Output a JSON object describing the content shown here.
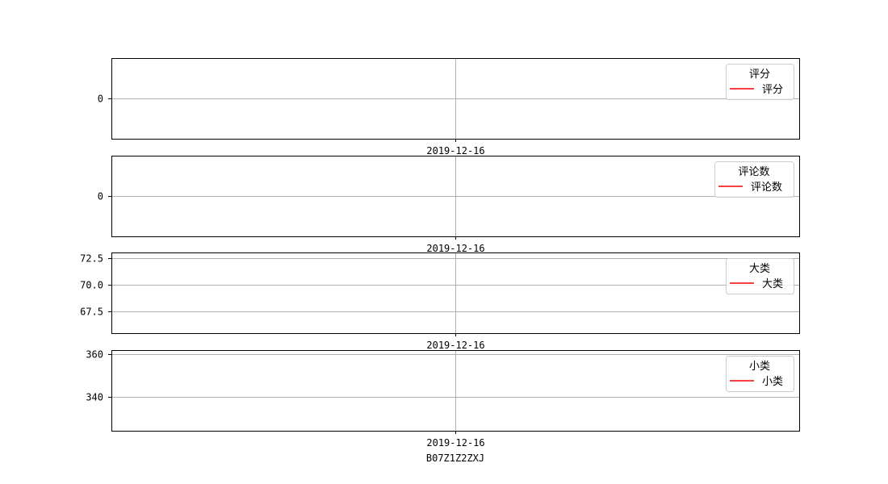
{
  "chart_data": [
    {
      "type": "line",
      "legend_title": "评分",
      "legend_position": "upper right",
      "x_ticks": [
        "2019-12-16"
      ],
      "xlabel": "",
      "y_ticks": [
        0
      ],
      "y_tick_labels": [
        "0"
      ],
      "ylim": [
        -0.055,
        0.055
      ],
      "grid": true,
      "series": [
        {
          "name": "评分",
          "color": "#ff0000",
          "x": [
            "2019-12-16"
          ],
          "y": [
            0
          ]
        }
      ]
    },
    {
      "type": "line",
      "legend_title": "评论数",
      "legend_position": "upper right",
      "x_ticks": [
        "2019-12-16"
      ],
      "xlabel": "",
      "y_ticks": [
        0
      ],
      "y_tick_labels": [
        "0"
      ],
      "ylim": [
        -0.055,
        0.055
      ],
      "grid": true,
      "series": [
        {
          "name": "评论数",
          "color": "#ff0000",
          "x": [
            "2019-12-16"
          ],
          "y": [
            0
          ]
        }
      ]
    },
    {
      "type": "line",
      "legend_title": "大类",
      "legend_position": "upper right",
      "x_ticks": [
        "2019-12-16"
      ],
      "xlabel": "",
      "y_ticks": [
        67.5,
        70.0,
        72.5
      ],
      "y_tick_labels": [
        "67.5",
        "70.0",
        "72.5"
      ],
      "ylim": [
        65.5,
        73.0
      ],
      "grid": true,
      "series": [
        {
          "name": "大类",
          "color": "#ff0000",
          "x": [
            "2019-12-16"
          ],
          "y": [
            70
          ]
        }
      ]
    },
    {
      "type": "line",
      "legend_title": "小类",
      "legend_position": "upper right",
      "x_ticks": [
        "2019-12-16"
      ],
      "xlabel": "B07Z1Z2ZXJ",
      "y_ticks": [
        340,
        360
      ],
      "y_tick_labels": [
        "340",
        "360"
      ],
      "ylim": [
        324,
        362
      ],
      "grid": true,
      "series": [
        {
          "name": "小类",
          "color": "#ff0000",
          "x": [
            "2019-12-16"
          ],
          "y": [
            343
          ]
        }
      ]
    }
  ]
}
